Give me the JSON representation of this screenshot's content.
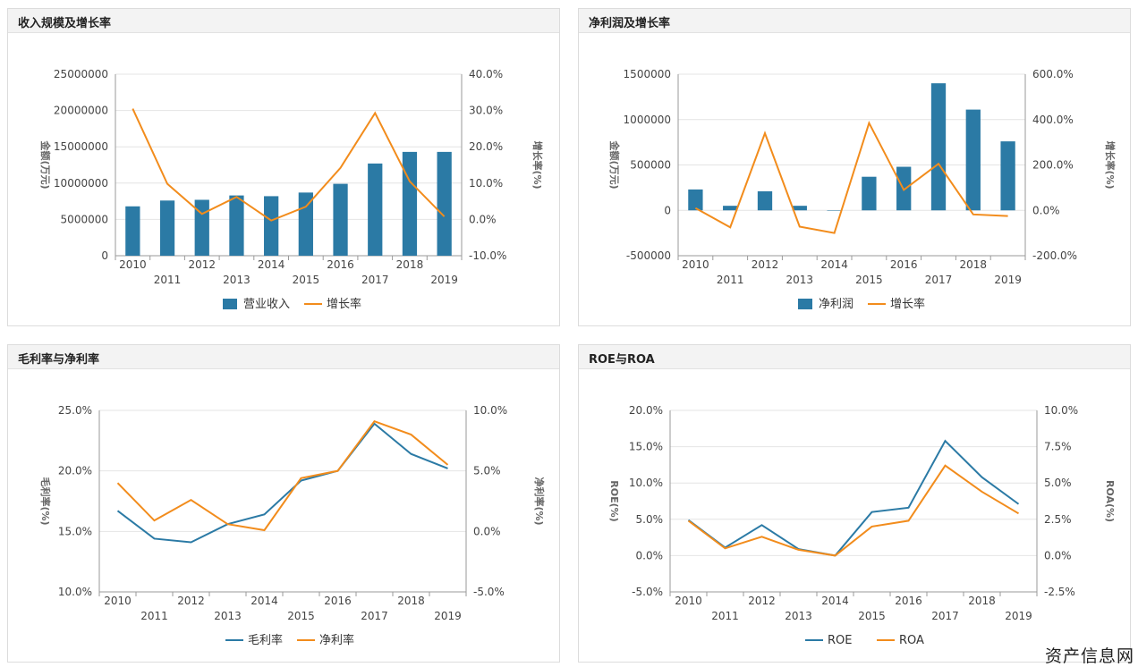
{
  "watermark": "资产信息网",
  "colors": {
    "blue": "#2b7aa5",
    "orange": "#f28c1c",
    "grid": "#e4e4e4",
    "axis": "#9a9a9a"
  },
  "panels": [
    {
      "title": "收入规模及增长率"
    },
    {
      "title": "净利润及增长率"
    },
    {
      "title": "毛利率与净利率"
    },
    {
      "title": "ROE与ROA"
    }
  ],
  "chart_data": [
    {
      "type": "bar",
      "title": "收入规模及增长率",
      "categories": [
        "2010",
        "2011",
        "2012",
        "2013",
        "2014",
        "2015",
        "2016",
        "2017",
        "2018",
        "2019"
      ],
      "ylabel": "金额(万元)",
      "y2label": "增长率(%)",
      "ylim": [
        0,
        25000000
      ],
      "yticks": [
        "0",
        "5000000",
        "10000000",
        "15000000",
        "20000000",
        "25000000"
      ],
      "y2lim": [
        -10,
        40
      ],
      "y2ticks": [
        "-10.0%",
        "0.0%",
        "10.0%",
        "20.0%",
        "30.0%",
        "40.0%"
      ],
      "series": [
        {
          "name": "营业收入",
          "kind": "bar",
          "axis": "left",
          "color": "#2b7aa5",
          "values": [
            6800000,
            7600000,
            7700000,
            8300000,
            8200000,
            8700000,
            9900000,
            12700000,
            14300000,
            14300000
          ]
        },
        {
          "name": "增长率",
          "kind": "line",
          "axis": "right",
          "color": "#f28c1c",
          "values": [
            30.5,
            9.8,
            1.5,
            6.2,
            -0.3,
            3.5,
            14.2,
            29.3,
            10.5,
            0.8
          ]
        }
      ]
    },
    {
      "type": "bar",
      "title": "净利润及增长率",
      "categories": [
        "2010",
        "2011",
        "2012",
        "2013",
        "2014",
        "2015",
        "2016",
        "2017",
        "2018",
        "2019"
      ],
      "ylabel": "金额(万元)",
      "y2label": "增长率(%)",
      "ylim": [
        -500000,
        1500000
      ],
      "yticks": [
        "-500000",
        "0",
        "500000",
        "1000000",
        "1500000"
      ],
      "y2lim": [
        -200,
        600
      ],
      "y2ticks": [
        "-200.0%",
        "0.0%",
        "200.0%",
        "400.0%",
        "600.0%"
      ],
      "series": [
        {
          "name": "净利润",
          "kind": "bar",
          "axis": "left",
          "color": "#2b7aa5",
          "values": [
            230000,
            50000,
            210000,
            50000,
            0,
            370000,
            480000,
            1400000,
            1110000,
            760000
          ]
        },
        {
          "name": "增长率",
          "kind": "line",
          "axis": "right",
          "color": "#f28c1c",
          "values": [
            10,
            -75,
            340,
            -72,
            -100,
            385,
            90,
            205,
            -18,
            -25
          ]
        }
      ]
    },
    {
      "type": "line",
      "title": "毛利率与净利率",
      "categories": [
        "2010",
        "2011",
        "2012",
        "2013",
        "2014",
        "2015",
        "2016",
        "2017",
        "2018",
        "2019"
      ],
      "ylabel": "毛利率(%)",
      "y2label": "净利率(%)",
      "ylim": [
        10,
        25
      ],
      "yticks": [
        "10.0%",
        "15.0%",
        "20.0%",
        "25.0%"
      ],
      "y2lim": [
        -5,
        10
      ],
      "y2ticks": [
        "-5.0%",
        "0.0%",
        "5.0%",
        "10.0%"
      ],
      "series": [
        {
          "name": "毛利率",
          "kind": "line",
          "axis": "left",
          "color": "#2b7aa5",
          "values": [
            16.7,
            14.4,
            14.1,
            15.6,
            16.4,
            19.2,
            20.0,
            23.9,
            21.4,
            20.2
          ]
        },
        {
          "name": "净利率",
          "kind": "line",
          "axis": "right",
          "color": "#f28c1c",
          "values": [
            4.0,
            0.9,
            2.6,
            0.6,
            0.1,
            4.4,
            5.0,
            9.1,
            8.0,
            5.5
          ]
        }
      ]
    },
    {
      "type": "line",
      "title": "ROE与ROA",
      "categories": [
        "2010",
        "2011",
        "2012",
        "2013",
        "2014",
        "2015",
        "2016",
        "2017",
        "2018",
        "2019"
      ],
      "ylabel": "ROE(%)",
      "y2label": "ROA(%)",
      "ylim": [
        -5,
        20
      ],
      "yticks": [
        "-5.0%",
        "0.0%",
        "5.0%",
        "10.0%",
        "15.0%",
        "20.0%"
      ],
      "y2lim": [
        -2.5,
        10
      ],
      "y2ticks": [
        "-2.5%",
        "0.0%",
        "2.5%",
        "5.0%",
        "7.5%",
        "10.0%"
      ],
      "series": [
        {
          "name": "ROE",
          "kind": "line",
          "axis": "left",
          "color": "#2b7aa5",
          "values": [
            4.9,
            1.1,
            4.2,
            0.9,
            0.0,
            6.0,
            6.6,
            15.8,
            10.8,
            7.1
          ]
        },
        {
          "name": "ROA",
          "kind": "line",
          "axis": "right",
          "color": "#f28c1c",
          "values": [
            2.4,
            0.5,
            1.3,
            0.4,
            0.0,
            2.0,
            2.4,
            6.2,
            4.4,
            2.9
          ]
        }
      ]
    }
  ]
}
